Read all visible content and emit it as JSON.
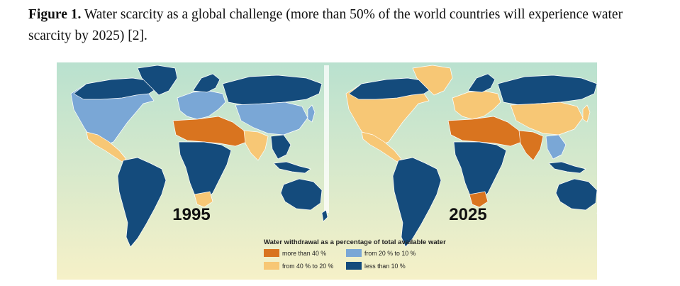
{
  "caption": {
    "label": "Figure 1.",
    "text": " Water scarcity as a global challenge (more than 50% of the world countries will experience water scarcity by 2025) [2]."
  },
  "maps": [
    {
      "year": "1995"
    },
    {
      "year": "2025"
    }
  ],
  "legend": {
    "title": "Water withdrawal as a percentage of total available water",
    "items": [
      {
        "label": "more than 40 %",
        "color": "#d9741f"
      },
      {
        "label": "from 40 % to 20 %",
        "color": "#f7c775"
      },
      {
        "label": "from 20 % to 10 %",
        "color": "#7aa7d6"
      },
      {
        "label": "less than 10 %",
        "color": "#144b7c"
      }
    ]
  },
  "colors": {
    "bg_top": "#b9e1cf",
    "bg_bottom": "#f6f1c8",
    "divider": "#ffffff"
  }
}
